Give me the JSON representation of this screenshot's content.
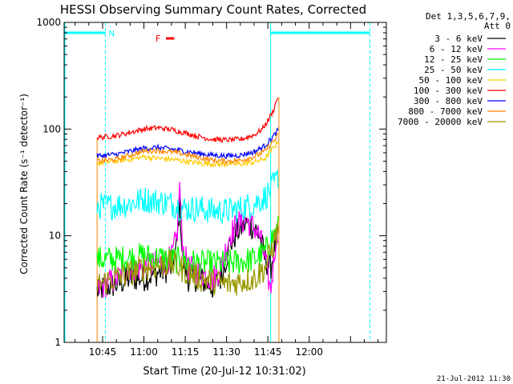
{
  "chart_data": {
    "type": "line",
    "title": "HESSI Observing Summary Count Rates, Corrected",
    "xlabel": "Start Time (20-Jul-12 10:31:02)",
    "ylabel": "Corrected Count Rate (s⁻¹ detector⁻¹)",
    "y_scale": "log",
    "ylim": [
      1,
      1000
    ],
    "xlim": [
      "10:31:02",
      "12:28:00"
    ],
    "x_ticks": [
      "10:45",
      "11:00",
      "11:15",
      "11:30",
      "11:45",
      "12:00"
    ],
    "y_ticks": [
      "1",
      "10",
      "100",
      "1000"
    ],
    "grid": false,
    "legend_position": "right",
    "legend_header": [
      "Det 1,3,5,6,7,9,",
      "Att 0"
    ],
    "footer_date": "21-Jul-2012 11:30",
    "flag_labels": {
      "night": "N",
      "flare": "F"
    },
    "night_intervals": [
      [
        "10:31",
        "10:46"
      ],
      [
        "11:46",
        "12:22"
      ]
    ],
    "flare_interval": [
      "11:08",
      "11:11"
    ],
    "data_start": "10:43",
    "data_end": "11:49",
    "series": [
      {
        "name": "3 - 6 keV",
        "color": "#000000",
        "x": [
          "10:43",
          "10:46",
          "10:50",
          "10:55",
          "11:00",
          "11:05",
          "11:10",
          "11:12",
          "11:13",
          "11:14",
          "11:16",
          "11:20",
          "11:25",
          "11:28",
          "11:31",
          "11:34",
          "11:37",
          "11:40",
          "11:42",
          "11:44",
          "11:46",
          "11:48",
          "11:49"
        ],
        "values": [
          3.0,
          3.3,
          3.5,
          4.0,
          4.0,
          4.5,
          5.0,
          8.0,
          22,
          6.0,
          4.0,
          4.0,
          3.3,
          4.0,
          8.0,
          11,
          13,
          12,
          10,
          6.0,
          5.0,
          9.0,
          10
        ]
      },
      {
        "name": "6 - 12 keV",
        "color": "#ff00ff",
        "x": [
          "10:43",
          "10:46",
          "10:50",
          "10:55",
          "11:00",
          "11:05",
          "11:10",
          "11:12",
          "11:13",
          "11:14",
          "11:16",
          "11:20",
          "11:25",
          "11:28",
          "11:31",
          "11:34",
          "11:37",
          "11:40",
          "11:42",
          "11:44",
          "11:46",
          "11:48",
          "11:49"
        ],
        "values": [
          3.0,
          3.5,
          4.0,
          5.0,
          5.0,
          5.5,
          6.0,
          10,
          30,
          8.0,
          5.0,
          4.5,
          4.0,
          5.0,
          10,
          13,
          14,
          12,
          10,
          6.0,
          3.0,
          10,
          12
        ]
      },
      {
        "name": "12 - 25 keV",
        "color": "#00ff00",
        "x": [
          "10:43",
          "10:50",
          "11:00",
          "11:10",
          "11:20",
          "11:30",
          "11:40",
          "11:44",
          "11:46",
          "11:48",
          "11:49"
        ],
        "values": [
          6.0,
          6.0,
          6.5,
          6.0,
          5.5,
          5.5,
          6.0,
          7.0,
          9.0,
          11,
          12
        ]
      },
      {
        "name": "25 - 50 keV",
        "color": "#00ffff",
        "x": [
          "10:43",
          "10:48",
          "10:55",
          "11:00",
          "11:05",
          "11:10",
          "11:15",
          "11:20",
          "11:25",
          "11:30",
          "11:35",
          "11:40",
          "11:44",
          "11:46",
          "11:48",
          "11:49"
        ],
        "values": [
          19,
          19,
          20,
          22,
          21,
          20,
          18,
          18,
          17,
          17,
          18,
          20,
          23,
          27,
          32,
          38
        ]
      },
      {
        "name": "50 - 100 keV",
        "color": "#ffcc00",
        "x": [
          "10:43",
          "10:50",
          "10:55",
          "11:00",
          "11:05",
          "11:10",
          "11:15",
          "11:20",
          "11:25",
          "11:30",
          "11:35",
          "11:40",
          "11:44",
          "11:46",
          "11:48",
          "11:49"
        ],
        "values": [
          48,
          50,
          52,
          55,
          53,
          52,
          50,
          48,
          47,
          47,
          47,
          49,
          53,
          62,
          72,
          80
        ]
      },
      {
        "name": "100 - 300 keV",
        "color": "#ff0000",
        "x": [
          "10:43",
          "10:50",
          "10:55",
          "11:00",
          "11:05",
          "11:10",
          "11:15",
          "11:20",
          "11:25",
          "11:30",
          "11:35",
          "11:40",
          "11:43",
          "11:45",
          "11:47",
          "11:48",
          "11:49"
        ],
        "values": [
          83,
          87,
          93,
          100,
          103,
          99,
          92,
          85,
          80,
          79,
          80,
          88,
          100,
          120,
          150,
          180,
          210
        ]
      },
      {
        "name": "300 - 800 keV",
        "color": "#0000ff",
        "x": [
          "10:43",
          "10:50",
          "10:55",
          "11:00",
          "11:05",
          "11:10",
          "11:15",
          "11:20",
          "11:25",
          "11:30",
          "11:35",
          "11:40",
          "11:44",
          "11:46",
          "11:48",
          "11:49"
        ],
        "values": [
          56,
          58,
          62,
          66,
          67,
          65,
          62,
          59,
          57,
          56,
          57,
          61,
          70,
          80,
          92,
          100
        ]
      },
      {
        "name": "800 - 7000 keV",
        "color": "#ff8800",
        "x": [
          "10:43",
          "10:50",
          "10:55",
          "11:00",
          "11:05",
          "11:10",
          "11:15",
          "11:20",
          "11:25",
          "11:30",
          "11:35",
          "11:40",
          "11:44",
          "11:46",
          "11:48",
          "11:49"
        ],
        "values": [
          50,
          52,
          57,
          62,
          63,
          61,
          58,
          54,
          51,
          50,
          51,
          55,
          62,
          72,
          82,
          90
        ]
      },
      {
        "name": "7000 - 20000 keV",
        "color": "#999900",
        "x": [
          "10:43",
          "10:50",
          "11:00",
          "11:10",
          "11:20",
          "11:30",
          "11:40",
          "11:44",
          "11:46",
          "11:48",
          "11:49"
        ],
        "values": [
          3.5,
          4.0,
          5.0,
          5.5,
          4.0,
          3.5,
          4.0,
          5.0,
          7.0,
          10,
          12
        ]
      }
    ]
  }
}
